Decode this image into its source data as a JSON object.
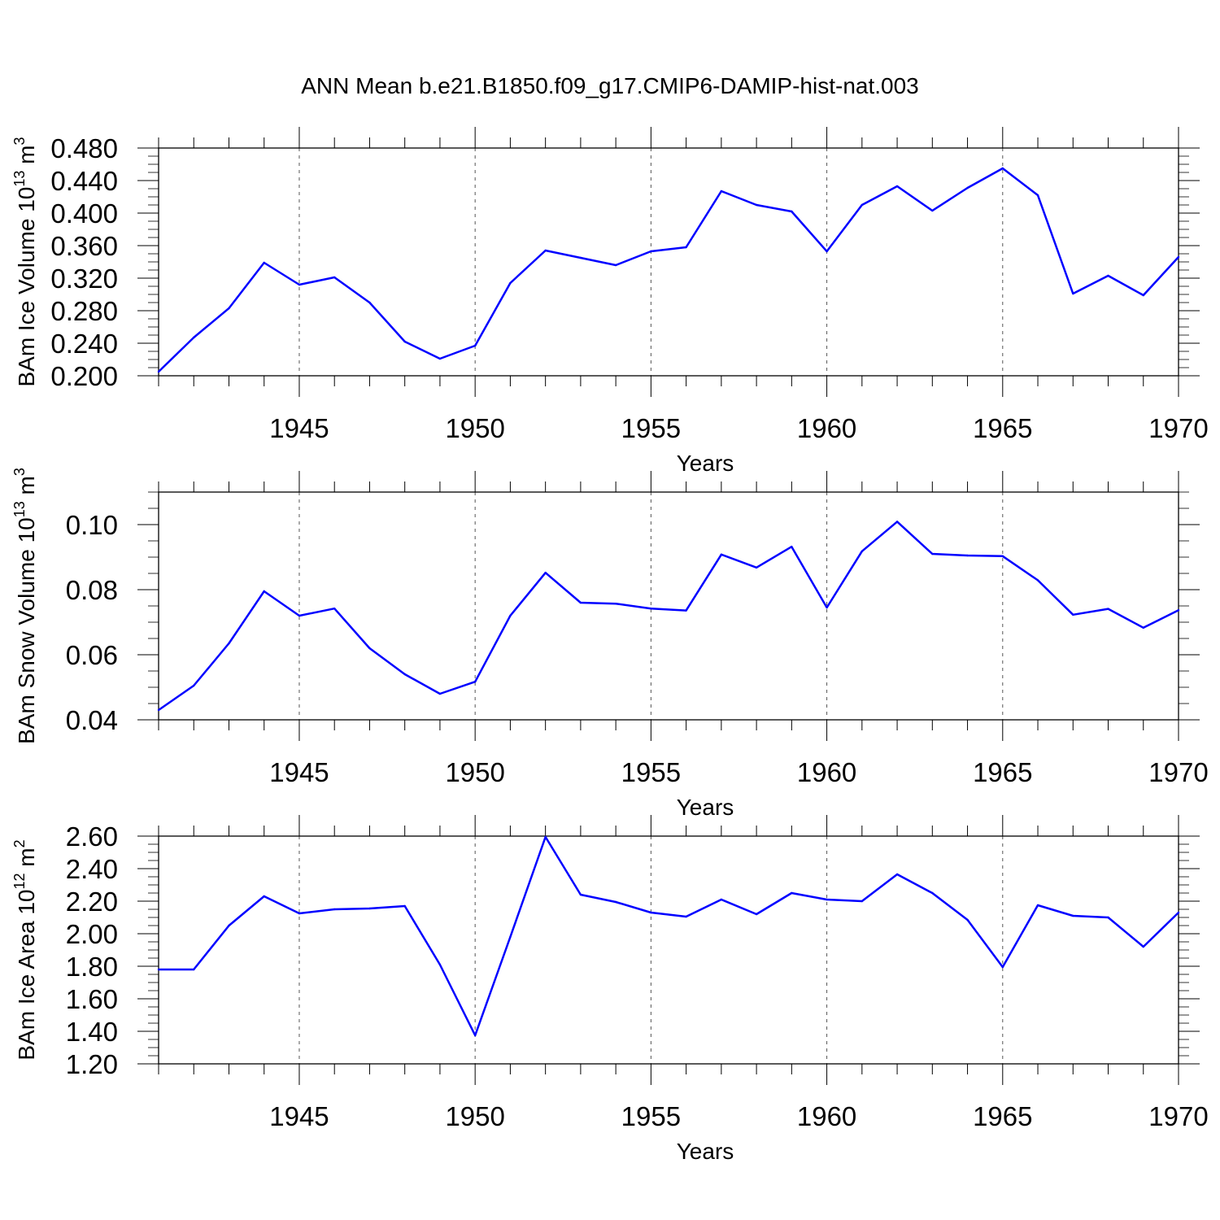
{
  "title": "ANN Mean b.e21.B1850.f09_g17.CMIP6-DAMIP-hist-nat.003",
  "line_color": "#0000ff",
  "chart_data": [
    {
      "type": "line",
      "ylabel": {
        "main": "BAm Ice Volume 10",
        "sup": "13",
        "unit": " m",
        "unit_sup": "3"
      },
      "xlabel": "Years",
      "xlim": [
        1941,
        1970
      ],
      "ylim": [
        0.2,
        0.48
      ],
      "yticks": [
        0.2,
        0.24,
        0.28,
        0.32,
        0.36,
        0.4,
        0.44,
        0.48
      ],
      "ytick_labels": [
        "0.200",
        "0.240",
        "0.280",
        "0.320",
        "0.360",
        "0.400",
        "0.440",
        "0.480"
      ],
      "xticks": [
        1945,
        1950,
        1955,
        1960,
        1965,
        1970
      ],
      "xtick_labels": [
        "1945",
        "1950",
        "1955",
        "1960",
        "1965",
        "1970"
      ],
      "grid": "vertical dashed at major x ticks",
      "series": [
        {
          "x": [
            1941,
            1942,
            1943,
            1944,
            1945,
            1946,
            1947,
            1948,
            1949,
            1950,
            1951,
            1952,
            1953,
            1954,
            1955,
            1956,
            1957,
            1958,
            1959,
            1960,
            1961,
            1962,
            1963,
            1964,
            1965,
            1966,
            1967,
            1968,
            1969,
            1970
          ],
          "values": [
            0.205,
            0.247,
            0.283,
            0.339,
            0.312,
            0.321,
            0.29,
            0.242,
            0.221,
            0.237,
            0.314,
            0.354,
            0.345,
            0.336,
            0.353,
            0.358,
            0.427,
            0.41,
            0.402,
            0.353,
            0.41,
            0.433,
            0.403,
            0.431,
            0.455,
            0.422,
            0.301,
            0.323,
            0.299,
            0.346
          ]
        }
      ]
    },
    {
      "type": "line",
      "ylabel": {
        "main": "BAm Snow Volume 10",
        "sup": "13",
        "unit": " m",
        "unit_sup": "3"
      },
      "xlabel": "Years",
      "xlim": [
        1941,
        1970
      ],
      "ylim": [
        0.04,
        0.11
      ],
      "yticks": [
        0.04,
        0.06,
        0.08,
        0.1
      ],
      "ytick_labels": [
        "0.04",
        "0.06",
        "0.08",
        "0.10"
      ],
      "xticks": [
        1945,
        1950,
        1955,
        1960,
        1965,
        1970
      ],
      "xtick_labels": [
        "1945",
        "1950",
        "1955",
        "1960",
        "1965",
        "1970"
      ],
      "grid": "vertical dashed at major x ticks",
      "series": [
        {
          "x": [
            1941,
            1942,
            1943,
            1944,
            1945,
            1946,
            1947,
            1948,
            1949,
            1950,
            1951,
            1952,
            1953,
            1954,
            1955,
            1956,
            1957,
            1958,
            1959,
            1960,
            1961,
            1962,
            1963,
            1964,
            1965,
            1966,
            1967,
            1968,
            1969,
            1970
          ],
          "values": [
            0.043,
            0.0505,
            0.0635,
            0.0795,
            0.072,
            0.0742,
            0.062,
            0.054,
            0.048,
            0.0517,
            0.072,
            0.0852,
            0.076,
            0.0757,
            0.0742,
            0.0736,
            0.0908,
            0.0868,
            0.0932,
            0.0745,
            0.0918,
            0.1009,
            0.091,
            0.0905,
            0.0903,
            0.0829,
            0.0723,
            0.0741,
            0.0683,
            0.0737
          ]
        }
      ]
    },
    {
      "type": "line",
      "ylabel": {
        "main": "BAm Ice Area 10",
        "sup": "12",
        "unit": " m",
        "unit_sup": "2"
      },
      "xlabel": "Years",
      "xlim": [
        1941,
        1970
      ],
      "ylim": [
        1.2,
        2.6
      ],
      "yticks": [
        1.2,
        1.4,
        1.6,
        1.8,
        2.0,
        2.2,
        2.4,
        2.6
      ],
      "ytick_labels": [
        "1.20",
        "1.40",
        "1.60",
        "1.80",
        "2.00",
        "2.20",
        "2.40",
        "2.60"
      ],
      "xticks": [
        1945,
        1950,
        1955,
        1960,
        1965,
        1970
      ],
      "xtick_labels": [
        "1945",
        "1950",
        "1955",
        "1960",
        "1965",
        "1970"
      ],
      "grid": "vertical dashed at major x ticks",
      "series": [
        {
          "x": [
            1941,
            1942,
            1943,
            1944,
            1945,
            1946,
            1947,
            1948,
            1949,
            1950,
            1951,
            1952,
            1953,
            1954,
            1955,
            1956,
            1957,
            1958,
            1959,
            1960,
            1961,
            1962,
            1963,
            1964,
            1965,
            1966,
            1967,
            1968,
            1969,
            1970
          ],
          "values": [
            1.78,
            1.78,
            2.05,
            2.23,
            2.125,
            2.15,
            2.155,
            2.17,
            1.81,
            1.375,
            1.98,
            2.595,
            2.24,
            2.195,
            2.13,
            2.105,
            2.21,
            2.12,
            2.25,
            2.21,
            2.2,
            2.365,
            2.25,
            2.085,
            1.795,
            2.175,
            2.11,
            2.1,
            1.92,
            2.13
          ]
        }
      ]
    }
  ]
}
